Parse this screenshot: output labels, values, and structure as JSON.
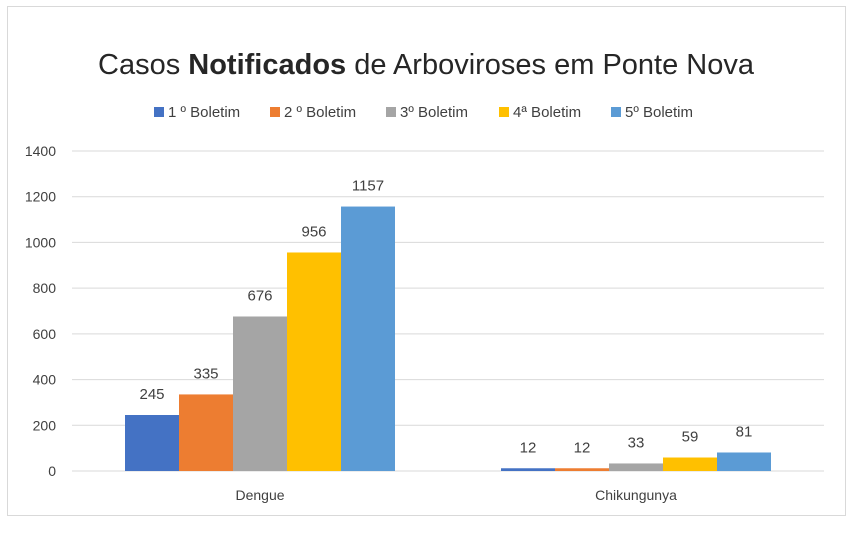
{
  "chart_data": {
    "type": "bar",
    "title": "Casos Notificados de Arboviroses em Ponte Nova",
    "title_parts": [
      "Casos ",
      "Notificados",
      " de Arboviroses em Ponte Nova"
    ],
    "categories": [
      "Dengue",
      "Chikungunya"
    ],
    "series": [
      {
        "name": "1 º Boletim",
        "values": [
          245,
          12
        ],
        "color": "#4472C4"
      },
      {
        "name": "2 º Boletim",
        "values": [
          335,
          12
        ],
        "color": "#ED7D31"
      },
      {
        "name": "3º Boletim",
        "values": [
          676,
          33
        ],
        "color": "#A5A5A5"
      },
      {
        "name": "4ª Boletim",
        "values": [
          956,
          59
        ],
        "color": "#FFC000"
      },
      {
        "name": "5º Boletim",
        "values": [
          1157,
          81
        ],
        "color": "#5B9BD5"
      }
    ],
    "yticks": [
      0,
      200,
      400,
      600,
      800,
      1000,
      1200,
      1400
    ],
    "ylim": [
      0,
      1400
    ],
    "xlabel": "",
    "ylabel": "",
    "grid": true,
    "legend_position": "top"
  }
}
